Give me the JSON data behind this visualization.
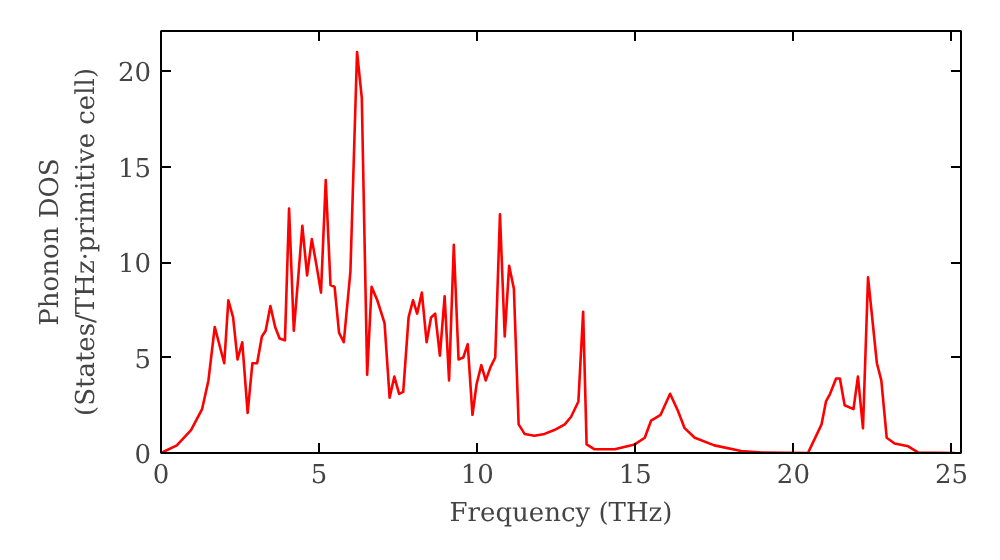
{
  "chart_data": {
    "type": "line",
    "xlabel": "Frequency (THz)",
    "ylabel": "Phonon DOS\n(States/THz·primitive cell)",
    "xlim": [
      0,
      25.3
    ],
    "ylim": [
      0,
      22.1
    ],
    "xticks": [
      0,
      5,
      10,
      15,
      20,
      25
    ],
    "yticks": [
      0,
      5,
      10,
      15,
      20
    ],
    "line_style": "solid",
    "series": [
      {
        "color": "#ff0000",
        "x": [
          0,
          0.5,
          0.95,
          1.3,
          1.5,
          1.7,
          2.0,
          2.13,
          2.28,
          2.42,
          2.57,
          2.74,
          2.89,
          3.04,
          3.19,
          3.31,
          3.46,
          3.61,
          3.75,
          3.92,
          4.05,
          4.2,
          4.35,
          4.47,
          4.62,
          4.77,
          4.92,
          5.06,
          5.21,
          5.36,
          5.49,
          5.63,
          5.78,
          5.99,
          6.2,
          6.35,
          6.52,
          6.66,
          6.84,
          7.07,
          7.23,
          7.38,
          7.53,
          7.66,
          7.83,
          7.97,
          8.1,
          8.25,
          8.4,
          8.54,
          8.67,
          8.82,
          8.97,
          9.11,
          9.26,
          9.41,
          9.56,
          9.7,
          9.85,
          9.98,
          10.13,
          10.27,
          10.42,
          10.57,
          10.72,
          10.87,
          11.01,
          11.16,
          11.31,
          11.5,
          11.81,
          12.13,
          12.44,
          12.77,
          12.97,
          13.2,
          13.35,
          13.46,
          13.7,
          14.35,
          14.98,
          15.3,
          15.5,
          15.8,
          16.1,
          16.35,
          16.56,
          16.88,
          17.5,
          18.35,
          18.99,
          20.46,
          20.89,
          21.03,
          21.16,
          21.35,
          21.47,
          21.62,
          21.9,
          22.04,
          22.2,
          22.36,
          22.64,
          22.78,
          22.95,
          23.2,
          23.63,
          23.94,
          25.1
        ],
        "values": [
          0,
          0.4,
          1.2,
          2.3,
          3.8,
          6.6,
          4.7,
          8.0,
          7.1,
          4.9,
          5.8,
          2.1,
          4.7,
          4.7,
          6.1,
          6.4,
          7.7,
          6.6,
          6.0,
          5.9,
          12.8,
          6.4,
          9.4,
          11.9,
          9.3,
          11.2,
          9.8,
          8.4,
          14.3,
          8.8,
          8.7,
          6.3,
          5.8,
          9.5,
          21.0,
          18.6,
          4.1,
          8.7,
          8.0,
          6.8,
          2.9,
          4.0,
          3.1,
          3.2,
          7.1,
          8.0,
          7.3,
          8.4,
          5.8,
          7.1,
          7.3,
          5.1,
          8.2,
          3.8,
          10.9,
          4.9,
          5.0,
          5.7,
          2.0,
          3.6,
          4.6,
          3.8,
          4.5,
          5.0,
          12.5,
          6.1,
          9.8,
          8.6,
          1.5,
          1.0,
          0.9,
          1.0,
          1.2,
          1.5,
          1.9,
          2.7,
          7.4,
          0.45,
          0.2,
          0.2,
          0.45,
          0.8,
          1.7,
          2.0,
          3.1,
          2.2,
          1.3,
          0.8,
          0.4,
          0.1,
          0.03,
          0,
          1.5,
          2.7,
          3.1,
          3.9,
          3.9,
          2.5,
          2.3,
          4.0,
          1.3,
          9.2,
          4.7,
          3.8,
          0.8,
          0.5,
          0.35,
          0.03,
          0
        ]
      }
    ]
  }
}
